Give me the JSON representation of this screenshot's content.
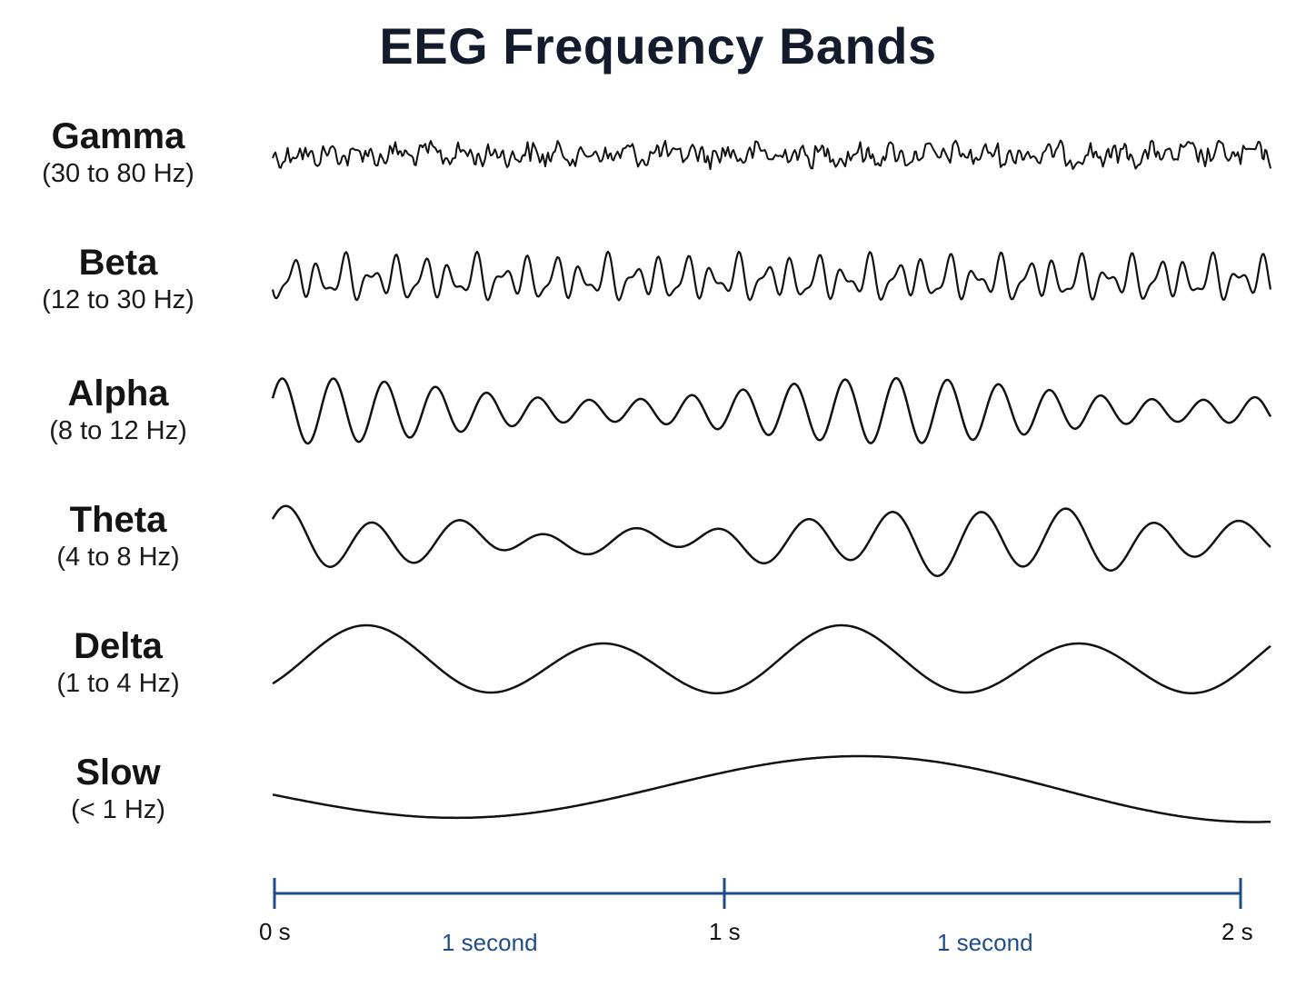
{
  "title": "EEG Frequency Bands",
  "bands": [
    {
      "name": "Gamma",
      "range": "(30 to 80 Hz)"
    },
    {
      "name": "Beta",
      "range": "(12 to 30 Hz)"
    },
    {
      "name": "Alpha",
      "range": "(8 to 12 Hz)"
    },
    {
      "name": "Theta",
      "range": "(4 to 8 Hz)"
    },
    {
      "name": "Delta",
      "range": "(1 to 4 Hz)"
    },
    {
      "name": "Slow",
      "range": "(< 1 Hz)"
    }
  ],
  "timeline": {
    "ticks": [
      "0 s",
      "1 s",
      "2 s"
    ],
    "spans": [
      "1 second",
      "1 second"
    ],
    "color": "#1d4e89"
  },
  "colors": {
    "wave": "#111111",
    "title": "#141b2d"
  }
}
